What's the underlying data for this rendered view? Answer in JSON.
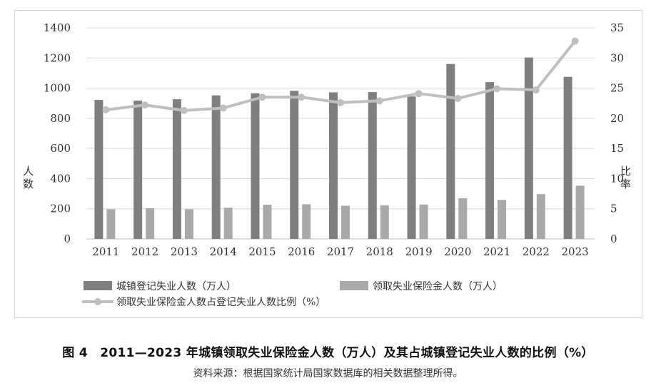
{
  "colors": {
    "bar_registered": "#7f7f7f",
    "bar_benefit": "#a9a9a9",
    "line_ratio": "#bfbfbf",
    "grid": "#d9d9d9",
    "axis": "#bfbfbf"
  },
  "caption": "图 4　2011—2023 年城镇领取失业保险金人数（万人）及其占城镇登记失业人数的比例（%）",
  "source": "资料来源：根据国家统计局国家数据库的相关数据整理所得。",
  "chart_data": {
    "type": "bar",
    "categories": [
      "2011",
      "2012",
      "2013",
      "2014",
      "2015",
      "2016",
      "2017",
      "2018",
      "2019",
      "2020",
      "2021",
      "2022",
      "2023"
    ],
    "series": [
      {
        "name": "城镇登记失业人数（万人）",
        "kind": "bar",
        "axis": "left",
        "values": [
          922,
          917,
          926,
          952,
          966,
          982,
          972,
          974,
          945,
          1160,
          1040,
          1203,
          1075
        ]
      },
      {
        "name": "领取失业保险金人数（万人）",
        "kind": "bar",
        "axis": "left",
        "values": [
          197,
          204,
          197,
          207,
          227,
          230,
          220,
          223,
          228,
          270,
          259,
          297,
          353
        ]
      },
      {
        "name": "领取失业保险金人数占登记失业人数比例（%）",
        "kind": "line",
        "axis": "right",
        "values": [
          21.4,
          22.2,
          21.3,
          21.7,
          23.5,
          23.5,
          22.6,
          22.9,
          24.1,
          23.3,
          24.9,
          24.7,
          32.8
        ]
      }
    ],
    "ylabel": "人数",
    "y2label": "比率",
    "ylim": [
      0,
      1400
    ],
    "y2lim": [
      0,
      35
    ],
    "yticks": [
      "0",
      "200",
      "400",
      "600",
      "800",
      "1000",
      "1200",
      "1400"
    ],
    "y2ticks": [
      "0",
      "5",
      "10",
      "15",
      "20",
      "25",
      "30",
      "35"
    ],
    "grid": true,
    "legend_position": "bottom"
  }
}
